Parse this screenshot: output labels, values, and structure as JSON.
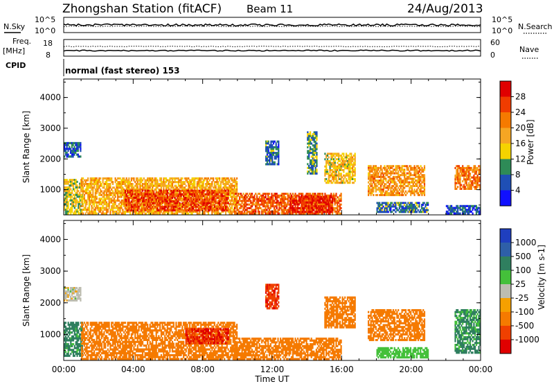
{
  "header": {
    "station": "Zhongshan Station (fitACF)",
    "beam": "Beam 11",
    "date": "24/Aug/2013"
  },
  "noise_panel": {
    "left_label": "N.Sky",
    "left_ticks": [
      "10^5",
      "10^0"
    ],
    "right_ticks": [
      "10^5",
      "10^0"
    ],
    "right_label": "N.Search"
  },
  "freq_panel": {
    "left_label_1": "Freq.",
    "left_label_2": "[MHz]",
    "left_ticks": [
      "18",
      "8"
    ],
    "right_ticks": [
      "60",
      "0"
    ],
    "right_label": "Nave"
  },
  "cpid_panel": {
    "label": "CPID",
    "text": "normal (fast stereo) 153"
  },
  "power_colorbar": {
    "title": "Power [dB]",
    "labels": [
      "28",
      "24",
      "20",
      "16",
      "12",
      "8",
      "4"
    ],
    "colors": [
      "#e00000",
      "#f03c00",
      "#f57a00",
      "#f5a623",
      "#f5d300",
      "#2e8b57",
      "#1f4fb5",
      "#1010ff"
    ]
  },
  "velocity_colorbar": {
    "title": "Velocity [m s-1]",
    "labels": [
      "1000",
      "500",
      "100",
      "25",
      "-25",
      "-100",
      "-500",
      "-1000"
    ],
    "colors": [
      "#1f3fbf",
      "#2e5fa8",
      "#2f7f5f",
      "#44c03a",
      "#bdbdb0",
      "#f5a000",
      "#f57a00",
      "#f04000",
      "#e00000"
    ]
  },
  "chart_data": [
    {
      "type": "heatmap",
      "name": "power",
      "ylabel": "Slant Range [km]",
      "yticks": [
        "4000",
        "3000",
        "2000",
        "1000"
      ],
      "ylim": [
        180,
        4600
      ],
      "xlim": [
        0,
        24
      ],
      "clabel": "Power [dB]",
      "blobs": [
        {
          "t0": 0.0,
          "t1": 1.1,
          "r0": 200,
          "r1": 1350,
          "v": 14
        },
        {
          "t0": 0.0,
          "t1": 1.0,
          "r0": 2050,
          "r1": 2550,
          "v": 6
        },
        {
          "t0": 1.0,
          "t1": 10.0,
          "r0": 200,
          "r1": 1400,
          "v": 18
        },
        {
          "t0": 3.5,
          "t1": 9.5,
          "r0": 300,
          "r1": 1000,
          "v": 26
        },
        {
          "t0": 9.8,
          "t1": 16.0,
          "r0": 200,
          "r1": 900,
          "v": 24
        },
        {
          "t0": 13.0,
          "t1": 15.5,
          "r0": 250,
          "r1": 800,
          "v": 28
        },
        {
          "t0": 15.0,
          "t1": 16.8,
          "r0": 1200,
          "r1": 2200,
          "v": 16
        },
        {
          "t0": 11.6,
          "t1": 12.4,
          "r0": 1800,
          "r1": 2600,
          "v": 8
        },
        {
          "t0": 14.0,
          "t1": 14.6,
          "r0": 1500,
          "r1": 2900,
          "v": 10
        },
        {
          "t0": 17.5,
          "t1": 20.8,
          "r0": 800,
          "r1": 1800,
          "v": 20
        },
        {
          "t0": 18.0,
          "t1": 21.0,
          "r0": 250,
          "r1": 600,
          "v": 8
        },
        {
          "t0": 22.5,
          "t1": 24.0,
          "r0": 1000,
          "r1": 1800,
          "v": 22
        },
        {
          "t0": 22.0,
          "t1": 24.0,
          "r0": 200,
          "r1": 500,
          "v": 6
        }
      ]
    },
    {
      "type": "heatmap",
      "name": "velocity",
      "ylabel": "Slant Range [km]",
      "yticks": [
        "4000",
        "3000",
        "2000",
        "1000"
      ],
      "ylim": [
        180,
        4600
      ],
      "xlim": [
        0,
        24
      ],
      "xticks": [
        "00:00",
        "04:00",
        "08:00",
        "12:00",
        "16:00",
        "20:00",
        "00:00"
      ],
      "xlabel": "Time UT",
      "clabel": "Velocity [m s-1]",
      "blobs": [
        {
          "t0": 0.0,
          "t1": 1.1,
          "r0": 300,
          "r1": 1400,
          "v": 150
        },
        {
          "t0": 0.0,
          "t1": 1.0,
          "r0": 2050,
          "r1": 2500,
          "v": 0
        },
        {
          "t0": 1.0,
          "t1": 10.0,
          "r0": 200,
          "r1": 1400,
          "v": -300
        },
        {
          "t0": 7.0,
          "t1": 9.5,
          "r0": 700,
          "r1": 1200,
          "v": -1000
        },
        {
          "t0": 9.8,
          "t1": 16.0,
          "r0": 200,
          "r1": 900,
          "v": -200
        },
        {
          "t0": 15.0,
          "t1": 16.8,
          "r0": 1200,
          "r1": 2200,
          "v": -300
        },
        {
          "t0": 11.6,
          "t1": 12.4,
          "r0": 1800,
          "r1": 2600,
          "v": -800
        },
        {
          "t0": 17.5,
          "t1": 20.8,
          "r0": 800,
          "r1": 1800,
          "v": -300
        },
        {
          "t0": 18.0,
          "t1": 21.0,
          "r0": 250,
          "r1": 600,
          "v": 60
        },
        {
          "t0": 22.5,
          "t1": 24.0,
          "r0": 400,
          "r1": 1800,
          "v": 120
        }
      ]
    }
  ]
}
